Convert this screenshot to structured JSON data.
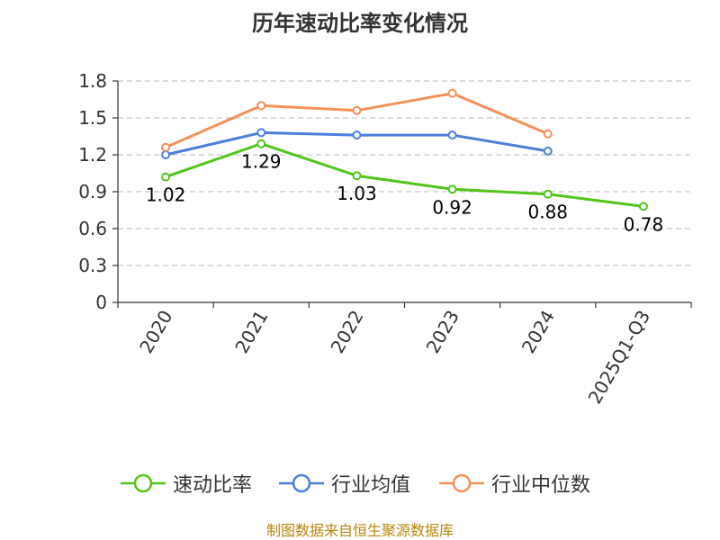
{
  "chart_data": {
    "type": "line",
    "title": "历年速动比率变化情况",
    "categories": [
      "2020",
      "2021",
      "2022",
      "2023",
      "2024",
      "2025Q1-Q3"
    ],
    "ylim": [
      0,
      1.8
    ],
    "yticks": [
      "0",
      "0.3",
      "0.6",
      "0.9",
      "1.2",
      "1.5",
      "1.8"
    ],
    "grid": true,
    "legend_position": "bottom",
    "series": [
      {
        "name": "速动比率",
        "color": "#52c41a",
        "values": [
          1.02,
          1.29,
          1.03,
          0.92,
          0.88,
          0.78
        ],
        "labels": [
          "1.02",
          "1.29",
          "1.03",
          "0.92",
          "0.88",
          "0.78"
        ],
        "show_labels": true
      },
      {
        "name": "行业均值",
        "color": "#4a7fdc",
        "values": [
          1.2,
          1.38,
          1.36,
          1.36,
          1.23,
          null
        ],
        "show_labels": false
      },
      {
        "name": "行业中位数",
        "color": "#f59059",
        "values": [
          1.26,
          1.6,
          1.56,
          1.7,
          1.37,
          null
        ],
        "show_labels": false
      }
    ]
  },
  "source": "制图数据来自恒生聚源数据库"
}
